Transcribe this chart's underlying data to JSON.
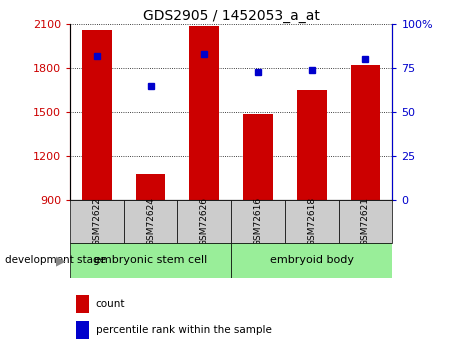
{
  "title": "GDS2905 / 1452053_a_at",
  "samples": [
    "GSM72622",
    "GSM72624",
    "GSM72626",
    "GSM72616",
    "GSM72618",
    "GSM72621"
  ],
  "counts": [
    2060,
    1080,
    2090,
    1490,
    1650,
    1820
  ],
  "percentiles": [
    82,
    65,
    83,
    73,
    74,
    80
  ],
  "ylim_left": [
    900,
    2100
  ],
  "ylim_right": [
    0,
    100
  ],
  "yticks_left": [
    900,
    1200,
    1500,
    1800,
    2100
  ],
  "yticks_right": [
    0,
    25,
    50,
    75,
    100
  ],
  "bar_color": "#cc0000",
  "dot_color": "#0000cc",
  "bar_width": 0.55,
  "grid_color": "black",
  "group1_label": "embryonic stem cell",
  "group2_label": "embryoid body",
  "group_bg_color": "#99ee99",
  "sample_bg_color": "#cccccc",
  "legend_count_label": "count",
  "legend_pct_label": "percentile rank within the sample",
  "dev_stage_label": "development stage",
  "left_yaxis_color": "#cc0000",
  "right_yaxis_color": "#0000cc",
  "title_fontsize": 10,
  "tick_fontsize": 8,
  "sample_fontsize": 6.5,
  "group_fontsize": 8,
  "legend_fontsize": 7.5
}
